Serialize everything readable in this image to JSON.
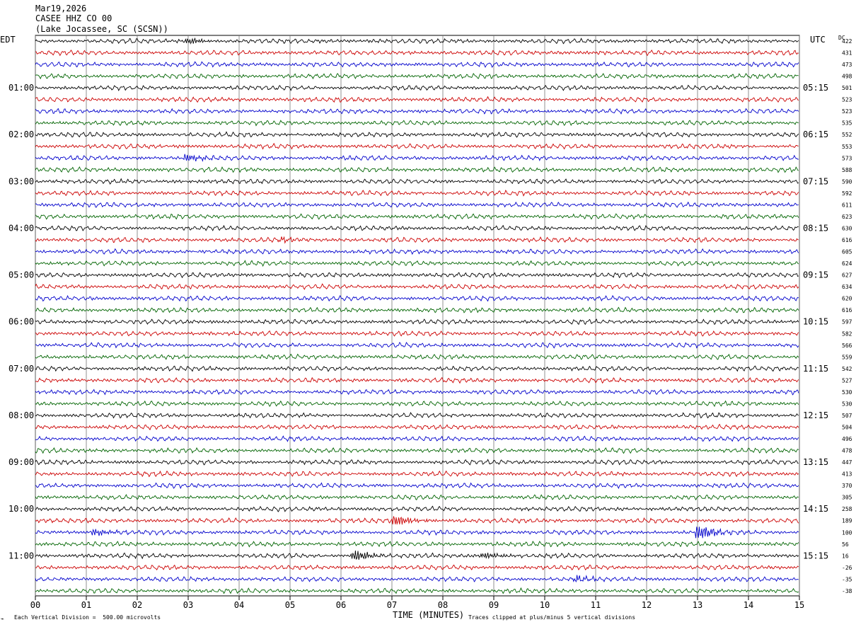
{
  "header": {
    "date": "Mar19,2026",
    "station": "CASEE HHZ CO 00",
    "location": "(Lake Jocassee, SC (SCSN))"
  },
  "left_axis_label": "EDT",
  "right_axis_label": "UTC",
  "dc_label": "DC",
  "xaxis_title": "TIME (MINUTES)",
  "footer_left": "Each Vertical Division =  500.00 microvolts",
  "footer_right": "Traces clipped at plus/minus 5 vertical divisions",
  "chart_data": {
    "type": "line",
    "xlabel": "TIME (MINUTES)",
    "xlim": [
      0,
      15
    ],
    "x_ticks": [
      "00",
      "01",
      "02",
      "03",
      "04",
      "05",
      "06",
      "07",
      "08",
      "09",
      "10",
      "11",
      "12",
      "13",
      "14",
      "15"
    ],
    "trace_colors": [
      "#000000",
      "#cc0000",
      "#0000cc",
      "#006400"
    ],
    "left_hour_labels": [
      "01:00",
      "02:00",
      "03:00",
      "04:00",
      "05:00",
      "06:00",
      "07:00",
      "08:00",
      "09:00",
      "10:00",
      "11:00"
    ],
    "right_hour_labels": [
      "05:15",
      "06:15",
      "07:15",
      "08:15",
      "09:15",
      "10:15",
      "11:15",
      "12:15",
      "13:15",
      "14:15",
      "15:15"
    ],
    "dc_values": [
      "422",
      "431",
      "473",
      "498",
      "501",
      "523",
      "523",
      "535",
      "552",
      "553",
      "573",
      "588",
      "590",
      "592",
      "611",
      "623",
      "630",
      "616",
      "605",
      "624",
      "627",
      "634",
      "620",
      "616",
      "597",
      "582",
      "566",
      "559",
      "542",
      "527",
      "530",
      "530",
      "507",
      "504",
      "496",
      "478",
      "447",
      "413",
      "370",
      "305",
      "258",
      "189",
      "100",
      "56",
      "16",
      "-26",
      "-35",
      "-38"
    ],
    "events": [
      {
        "trace": 0,
        "minute": 3.0,
        "amp": 1.3
      },
      {
        "trace": 10,
        "minute": 2.95,
        "amp": 1.6
      },
      {
        "trace": 17,
        "minute": 4.8,
        "amp": 1.0
      },
      {
        "trace": 41,
        "minute": 7.05,
        "amp": 2.5
      },
      {
        "trace": 42,
        "minute": 1.15,
        "amp": 1.5
      },
      {
        "trace": 42,
        "minute": 13.0,
        "amp": 3.5
      },
      {
        "trace": 44,
        "minute": 6.25,
        "amp": 2.5
      },
      {
        "trace": 44,
        "minute": 8.8,
        "amp": 1.3
      },
      {
        "trace": 46,
        "minute": 10.6,
        "amp": 1.4
      }
    ]
  }
}
